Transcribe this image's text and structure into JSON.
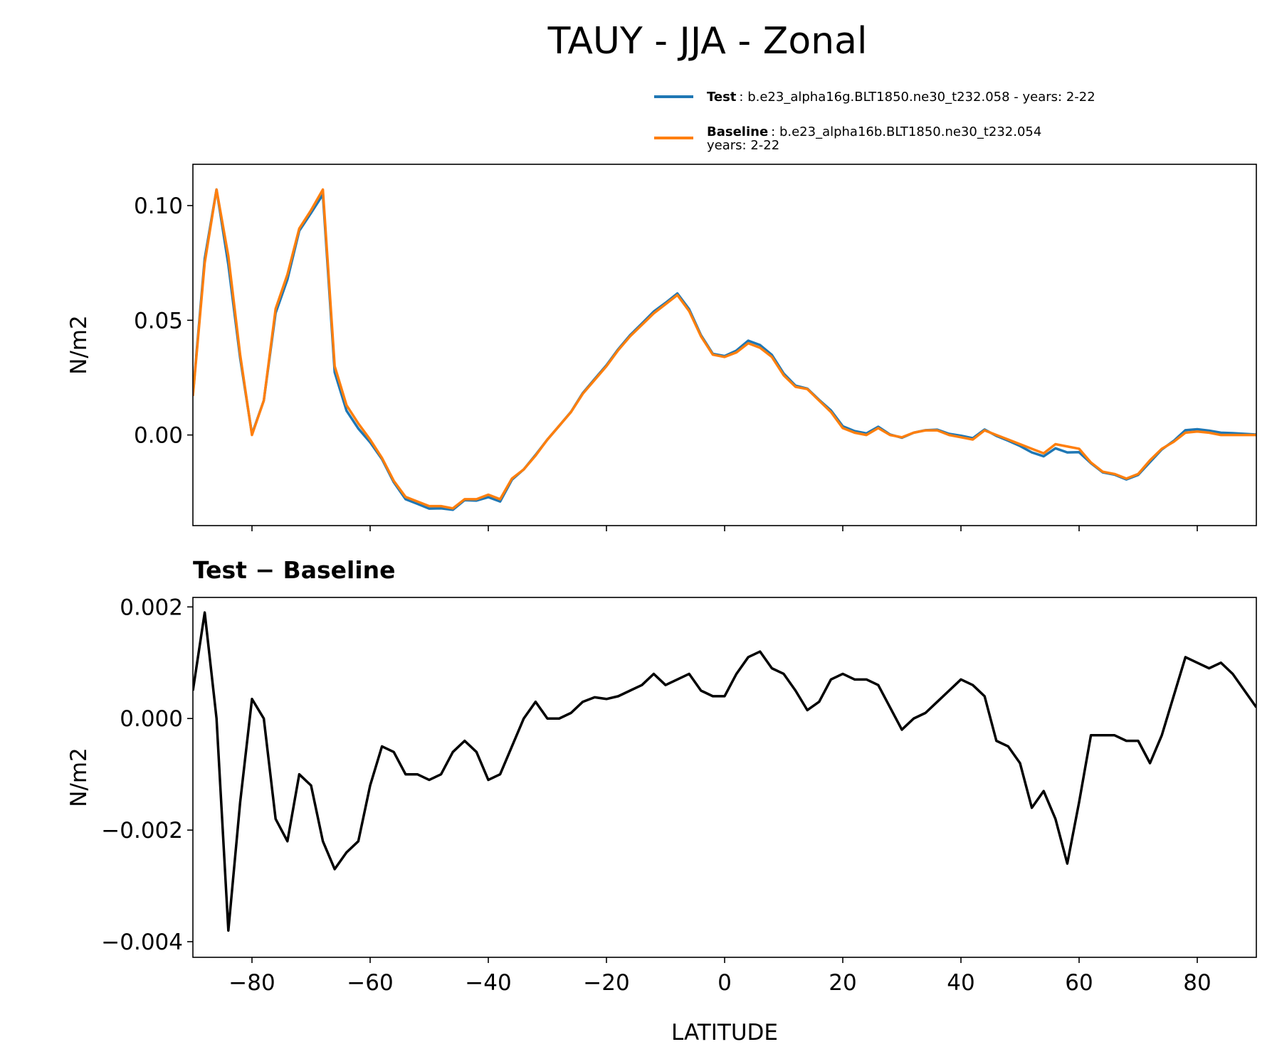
{
  "chart_data": [
    {
      "type": "line",
      "title": "TAUY - JJA - Zonal",
      "ylabel": "N/m2",
      "x": [
        -90,
        -88,
        -86,
        -84,
        -82,
        -80,
        -78,
        -76,
        -74,
        -72,
        -70,
        -68,
        -66,
        -64,
        -62,
        -60,
        -58,
        -56,
        -54,
        -52,
        -50,
        -48,
        -46,
        -44,
        -42,
        -40,
        -38,
        -36,
        -34,
        -32,
        -30,
        -28,
        -26,
        -24,
        -22,
        -20,
        -18,
        -16,
        -14,
        -12,
        -10,
        -8,
        -6,
        -4,
        -2,
        0,
        2,
        4,
        6,
        8,
        10,
        12,
        14,
        16,
        18,
        20,
        22,
        24,
        26,
        28,
        30,
        32,
        34,
        36,
        38,
        40,
        42,
        44,
        46,
        48,
        50,
        52,
        54,
        56,
        58,
        60,
        62,
        64,
        66,
        68,
        70,
        72,
        74,
        76,
        78,
        80,
        82,
        84,
        86,
        88,
        90
      ],
      "series": [
        {
          "name": "Test",
          "description": [
            ": b.e23_alpha16g.BLT1850.ne30_t232.058 - years: 2-22"
          ],
          "color": "#1f77b4",
          "values": [
            0.0175,
            0.0769,
            0.107,
            0.0742,
            0.0335,
            0.0004,
            0.015,
            0.0532,
            0.0678,
            0.089,
            0.0968,
            0.1048,
            0.0273,
            0.0106,
            0.0028,
            -0.0032,
            -0.0105,
            -0.0206,
            -0.028,
            -0.03,
            -0.0321,
            -0.032,
            -0.0326,
            -0.0284,
            -0.0286,
            -0.0271,
            -0.029,
            -0.0195,
            -0.015,
            -0.0087,
            -0.002,
            0.004,
            0.0101,
            0.0183,
            0.0244,
            0.0304,
            0.0374,
            0.0435,
            0.0486,
            0.0538,
            0.0576,
            0.0617,
            0.0548,
            0.0435,
            0.0354,
            0.0344,
            0.0368,
            0.0411,
            0.0392,
            0.0349,
            0.0268,
            0.0215,
            0.0202,
            0.0153,
            0.0107,
            0.0038,
            0.0017,
            0.0007,
            0.0036,
            0.0002,
            -0.0012,
            0.001,
            0.0021,
            0.0023,
            0.0005,
            -0.0003,
            -0.0014,
            0.0024,
            -0.0004,
            -0.0025,
            -0.0048,
            -0.0076,
            -0.0093,
            -0.0058,
            -0.0076,
            -0.0075,
            -0.0123,
            -0.0163,
            -0.0173,
            -0.0194,
            -0.0174,
            -0.0118,
            -0.0063,
            -0.0026,
            0.0021,
            0.0025,
            0.0019,
            0.001,
            0.0008,
            0.0005,
            0.0002
          ]
        },
        {
          "name": "Baseline",
          "description": [
            ": b.e23_alpha16b.BLT1850.ne30_t232.054",
            "years: 2-22"
          ],
          "color": "#ff7f0e",
          "values": [
            0.017,
            0.075,
            0.107,
            0.078,
            0.035,
            0.0,
            0.015,
            0.055,
            0.07,
            0.09,
            0.098,
            0.107,
            0.03,
            0.013,
            0.005,
            -0.002,
            -0.01,
            -0.02,
            -0.027,
            -0.029,
            -0.031,
            -0.031,
            -0.032,
            -0.028,
            -0.028,
            -0.026,
            -0.028,
            -0.019,
            -0.015,
            -0.009,
            -0.002,
            0.004,
            0.01,
            0.018,
            0.024,
            0.03,
            0.037,
            0.043,
            0.048,
            0.053,
            0.057,
            0.061,
            0.054,
            0.043,
            0.035,
            0.034,
            0.036,
            0.04,
            0.038,
            0.034,
            0.026,
            0.021,
            0.02,
            0.015,
            0.01,
            0.003,
            0.001,
            0.0,
            0.003,
            0.0,
            -0.001,
            0.001,
            0.002,
            0.002,
            0.0,
            -0.001,
            -0.002,
            0.002,
            0.0,
            -0.002,
            -0.004,
            -0.006,
            -0.008,
            -0.004,
            -0.005,
            -0.006,
            -0.012,
            -0.016,
            -0.017,
            -0.019,
            -0.017,
            -0.011,
            -0.006,
            -0.003,
            0.001,
            0.0015,
            0.001,
            0.0,
            0.0,
            0.0,
            0.0
          ]
        }
      ],
      "xlim": [
        -90,
        90
      ],
      "xticks": [
        -80,
        -60,
        -40,
        -20,
        0,
        20,
        40,
        60,
        80
      ],
      "ylim": [
        -0.0395,
        0.118
      ],
      "yticks": [
        {
          "value": 0,
          "label": "0.00"
        },
        {
          "value": 0.05,
          "label": "0.05"
        },
        {
          "value": 0.1,
          "label": "0.10"
        }
      ]
    },
    {
      "type": "line",
      "title": "Test − Baseline",
      "ylabel": "N/m2",
      "xlabel": "LATITUDE",
      "x": [
        -90,
        -88,
        -86,
        -84,
        -82,
        -80,
        -78,
        -76,
        -74,
        -72,
        -70,
        -68,
        -66,
        -64,
        -62,
        -60,
        -58,
        -56,
        -54,
        -52,
        -50,
        -48,
        -46,
        -44,
        -42,
        -40,
        -38,
        -36,
        -34,
        -32,
        -30,
        -28,
        -26,
        -24,
        -22,
        -20,
        -18,
        -16,
        -14,
        -12,
        -10,
        -8,
        -6,
        -4,
        -2,
        0,
        2,
        4,
        6,
        8,
        10,
        12,
        14,
        16,
        18,
        20,
        22,
        24,
        26,
        28,
        30,
        32,
        34,
        36,
        38,
        40,
        42,
        44,
        46,
        48,
        50,
        52,
        54,
        56,
        58,
        60,
        62,
        64,
        66,
        68,
        70,
        72,
        74,
        76,
        78,
        80,
        82,
        84,
        86,
        88,
        90
      ],
      "series": [
        {
          "color": "#000000",
          "values": [
            0.0005,
            0.0019,
            0.0,
            -0.0038,
            -0.0015,
            0.00035,
            0.0,
            -0.0018,
            -0.0022,
            -0.001,
            -0.0012,
            -0.0022,
            -0.0027,
            -0.0024,
            -0.0022,
            -0.0012,
            -0.0005,
            -0.0006,
            -0.001,
            -0.001,
            -0.0011,
            -0.001,
            -0.0006,
            -0.0004,
            -0.0006,
            -0.0011,
            -0.001,
            -0.0005,
            0.0,
            0.0003,
            0.0,
            0.0,
            0.0001,
            0.0003,
            0.00038,
            0.00035,
            0.0004,
            0.0005,
            0.0006,
            0.0008,
            0.0006,
            0.0007,
            0.0008,
            0.0005,
            0.0004,
            0.0004,
            0.0008,
            0.0011,
            0.0012,
            0.0009,
            0.0008,
            0.0005,
            0.00015,
            0.0003,
            0.0007,
            0.0008,
            0.0007,
            0.0007,
            0.0006,
            0.0002,
            -0.0002,
            0.0,
            0.0001,
            0.0003,
            0.0005,
            0.0007,
            0.0006,
            0.0004,
            -0.0004,
            -0.0005,
            -0.0008,
            -0.0016,
            -0.0013,
            -0.0018,
            -0.0026,
            -0.0015,
            -0.0003,
            -0.0003,
            -0.0003,
            -0.0004,
            -0.0004,
            -0.0008,
            -0.0003,
            0.0004,
            0.0011,
            0.001,
            0.0009,
            0.001,
            0.0008,
            0.0005,
            0.0002
          ]
        }
      ],
      "xlim": [
        -90,
        90
      ],
      "xticks": [
        {
          "value": -80,
          "label": "−80"
        },
        {
          "value": -60,
          "label": "−60"
        },
        {
          "value": -40,
          "label": "−40"
        },
        {
          "value": -20,
          "label": "−20"
        },
        0,
        20,
        40,
        60,
        80
      ],
      "ylim": [
        -0.00428,
        0.00217
      ],
      "yticks": [
        {
          "value": -0.004,
          "label": "−0.004"
        },
        {
          "value": -0.002,
          "label": "−0.002"
        },
        {
          "value": 0,
          "label": "0.000"
        },
        {
          "value": 0.002,
          "label": "0.002"
        }
      ]
    }
  ]
}
